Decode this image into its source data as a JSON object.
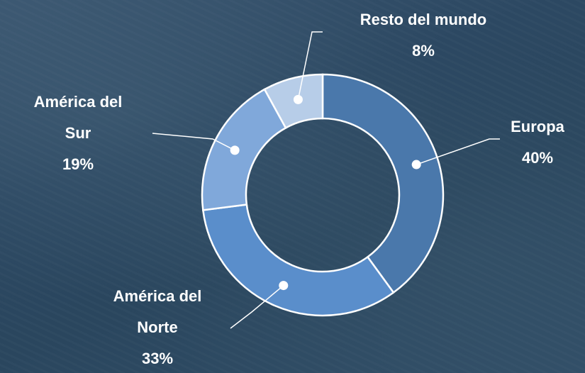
{
  "chart_data": {
    "type": "donut",
    "categories": [
      "Europa",
      "América del Norte",
      "América del Sur",
      "Resto del mundo"
    ],
    "values": [
      40,
      33,
      19,
      8
    ],
    "value_labels": [
      "40%",
      "33%",
      "19%",
      "8%"
    ],
    "colors": [
      "#4a78ab",
      "#5a8ecb",
      "#80a8da",
      "#b7cde8"
    ]
  }
}
